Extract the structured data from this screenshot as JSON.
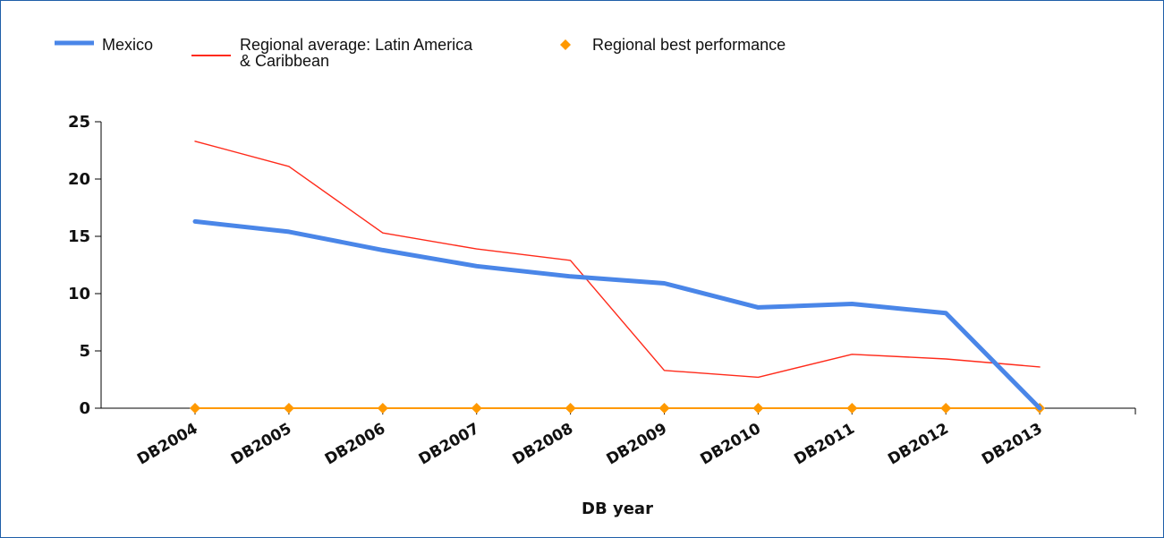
{
  "colors": {
    "frame": "#1f5fa8",
    "mexico": "#4a86e8",
    "regional_average": "#ff2a1a",
    "regional_best": "#ff9900",
    "axis": "#000000"
  },
  "legend": {
    "items": [
      {
        "label_lines": [
          "Mexico"
        ],
        "symbol": "thick-line",
        "series": "mexico"
      },
      {
        "label_lines": [
          "Regional average: Latin America",
          "& Caribbean"
        ],
        "symbol": "thin-line",
        "series": "regional_average"
      },
      {
        "label_lines": [
          "Regional best performance"
        ],
        "symbol": "diamond",
        "series": "regional_best"
      }
    ]
  },
  "chart_data": {
    "type": "line",
    "title": "",
    "xlabel": "DB year",
    "ylabel": "",
    "ylim": [
      0,
      25
    ],
    "yticks": [
      0,
      5,
      10,
      15,
      20,
      25
    ],
    "grid": false,
    "legend_position": "top-left",
    "categories": [
      "DB2004",
      "DB2005",
      "DB2006",
      "DB2007",
      "DB2008",
      "DB2009",
      "DB2010",
      "DB2011",
      "DB2012",
      "DB2013"
    ],
    "series": [
      {
        "name": "Mexico",
        "key": "mexico",
        "style": "thick-line",
        "values": [
          16.3,
          15.4,
          13.8,
          12.4,
          11.5,
          10.9,
          8.8,
          9.1,
          8.3,
          0
        ]
      },
      {
        "name": "Regional average: Latin America & Caribbean",
        "key": "regional_average",
        "style": "thin-line",
        "values": [
          23.3,
          21.1,
          15.3,
          13.9,
          12.9,
          3.3,
          2.7,
          4.7,
          4.3,
          3.6
        ]
      },
      {
        "name": "Regional best performance",
        "key": "regional_best",
        "style": "line-with-diamonds",
        "values": [
          0,
          0,
          0,
          0,
          0,
          0,
          0,
          0,
          0,
          0
        ]
      }
    ]
  }
}
